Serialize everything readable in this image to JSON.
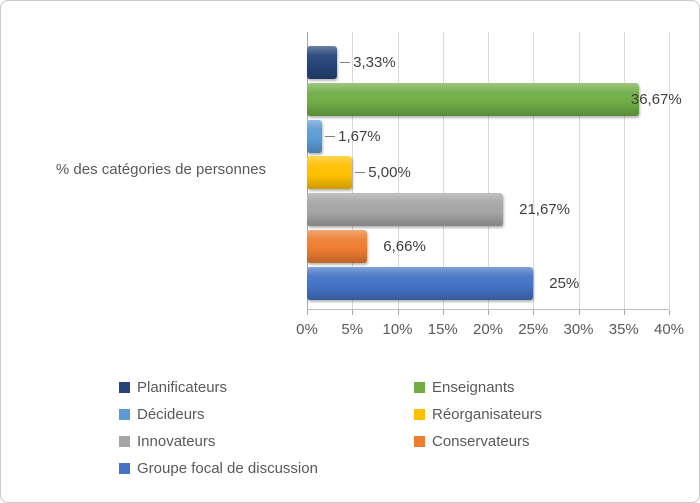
{
  "chart_data": {
    "type": "bar",
    "orientation": "horizontal",
    "title": "",
    "axis_title": "% des catégories de personnes",
    "xlim": [
      0,
      40
    ],
    "x_ticks": [
      "0%",
      "5%",
      "10%",
      "15%",
      "20%",
      "25%",
      "30%",
      "35%",
      "40%"
    ],
    "x_tick_values": [
      0,
      5,
      10,
      15,
      20,
      25,
      30,
      35,
      40
    ],
    "grid": true,
    "legend_position": "bottom",
    "bars": [
      {
        "category": "Planificateurs",
        "value": 3.33,
        "label": "3,33%",
        "color": "#264478",
        "leader": true
      },
      {
        "category": "Enseignants",
        "value": 36.67,
        "label": "36,67%",
        "color": "#70AD47",
        "leader": false
      },
      {
        "category": "Décideurs",
        "value": 1.67,
        "label": "1,67%",
        "color": "#5B9BD5",
        "leader": true
      },
      {
        "category": "Réorganisateurs",
        "value": 5.0,
        "label": "5,00%",
        "color": "#FFC000",
        "leader": true
      },
      {
        "category": "Innovateurs",
        "value": 21.67,
        "label": "21,67%",
        "color": "#A5A5A5",
        "leader": false
      },
      {
        "category": "Conservateurs",
        "value": 6.66,
        "label": "6,66%",
        "color": "#ED7D31",
        "leader": false
      },
      {
        "category": "Groupe focal de discussion",
        "value": 25,
        "label": "25%",
        "color": "#4472C4",
        "leader": false
      }
    ],
    "legend": [
      {
        "label": "Planificateurs",
        "color": "#264478"
      },
      {
        "label": "Enseignants",
        "color": "#70AD47"
      },
      {
        "label": "Décideurs",
        "color": "#5B9BD5"
      },
      {
        "label": "Réorganisateurs",
        "color": "#FFC000"
      },
      {
        "label": "Innovateurs",
        "color": "#A5A5A5"
      },
      {
        "label": "Conservateurs",
        "color": "#ED7D31"
      },
      {
        "label": "Groupe focal de discussion",
        "color": "#4472C4"
      }
    ]
  },
  "colors": {
    "gridline": "#D9D9D9",
    "axis_line": "#BFBFBF",
    "axis_text": "#595959",
    "data_label_text": "#3F3F3F",
    "figure_border": "#C9C9C9",
    "background": "#FFFFFF"
  }
}
